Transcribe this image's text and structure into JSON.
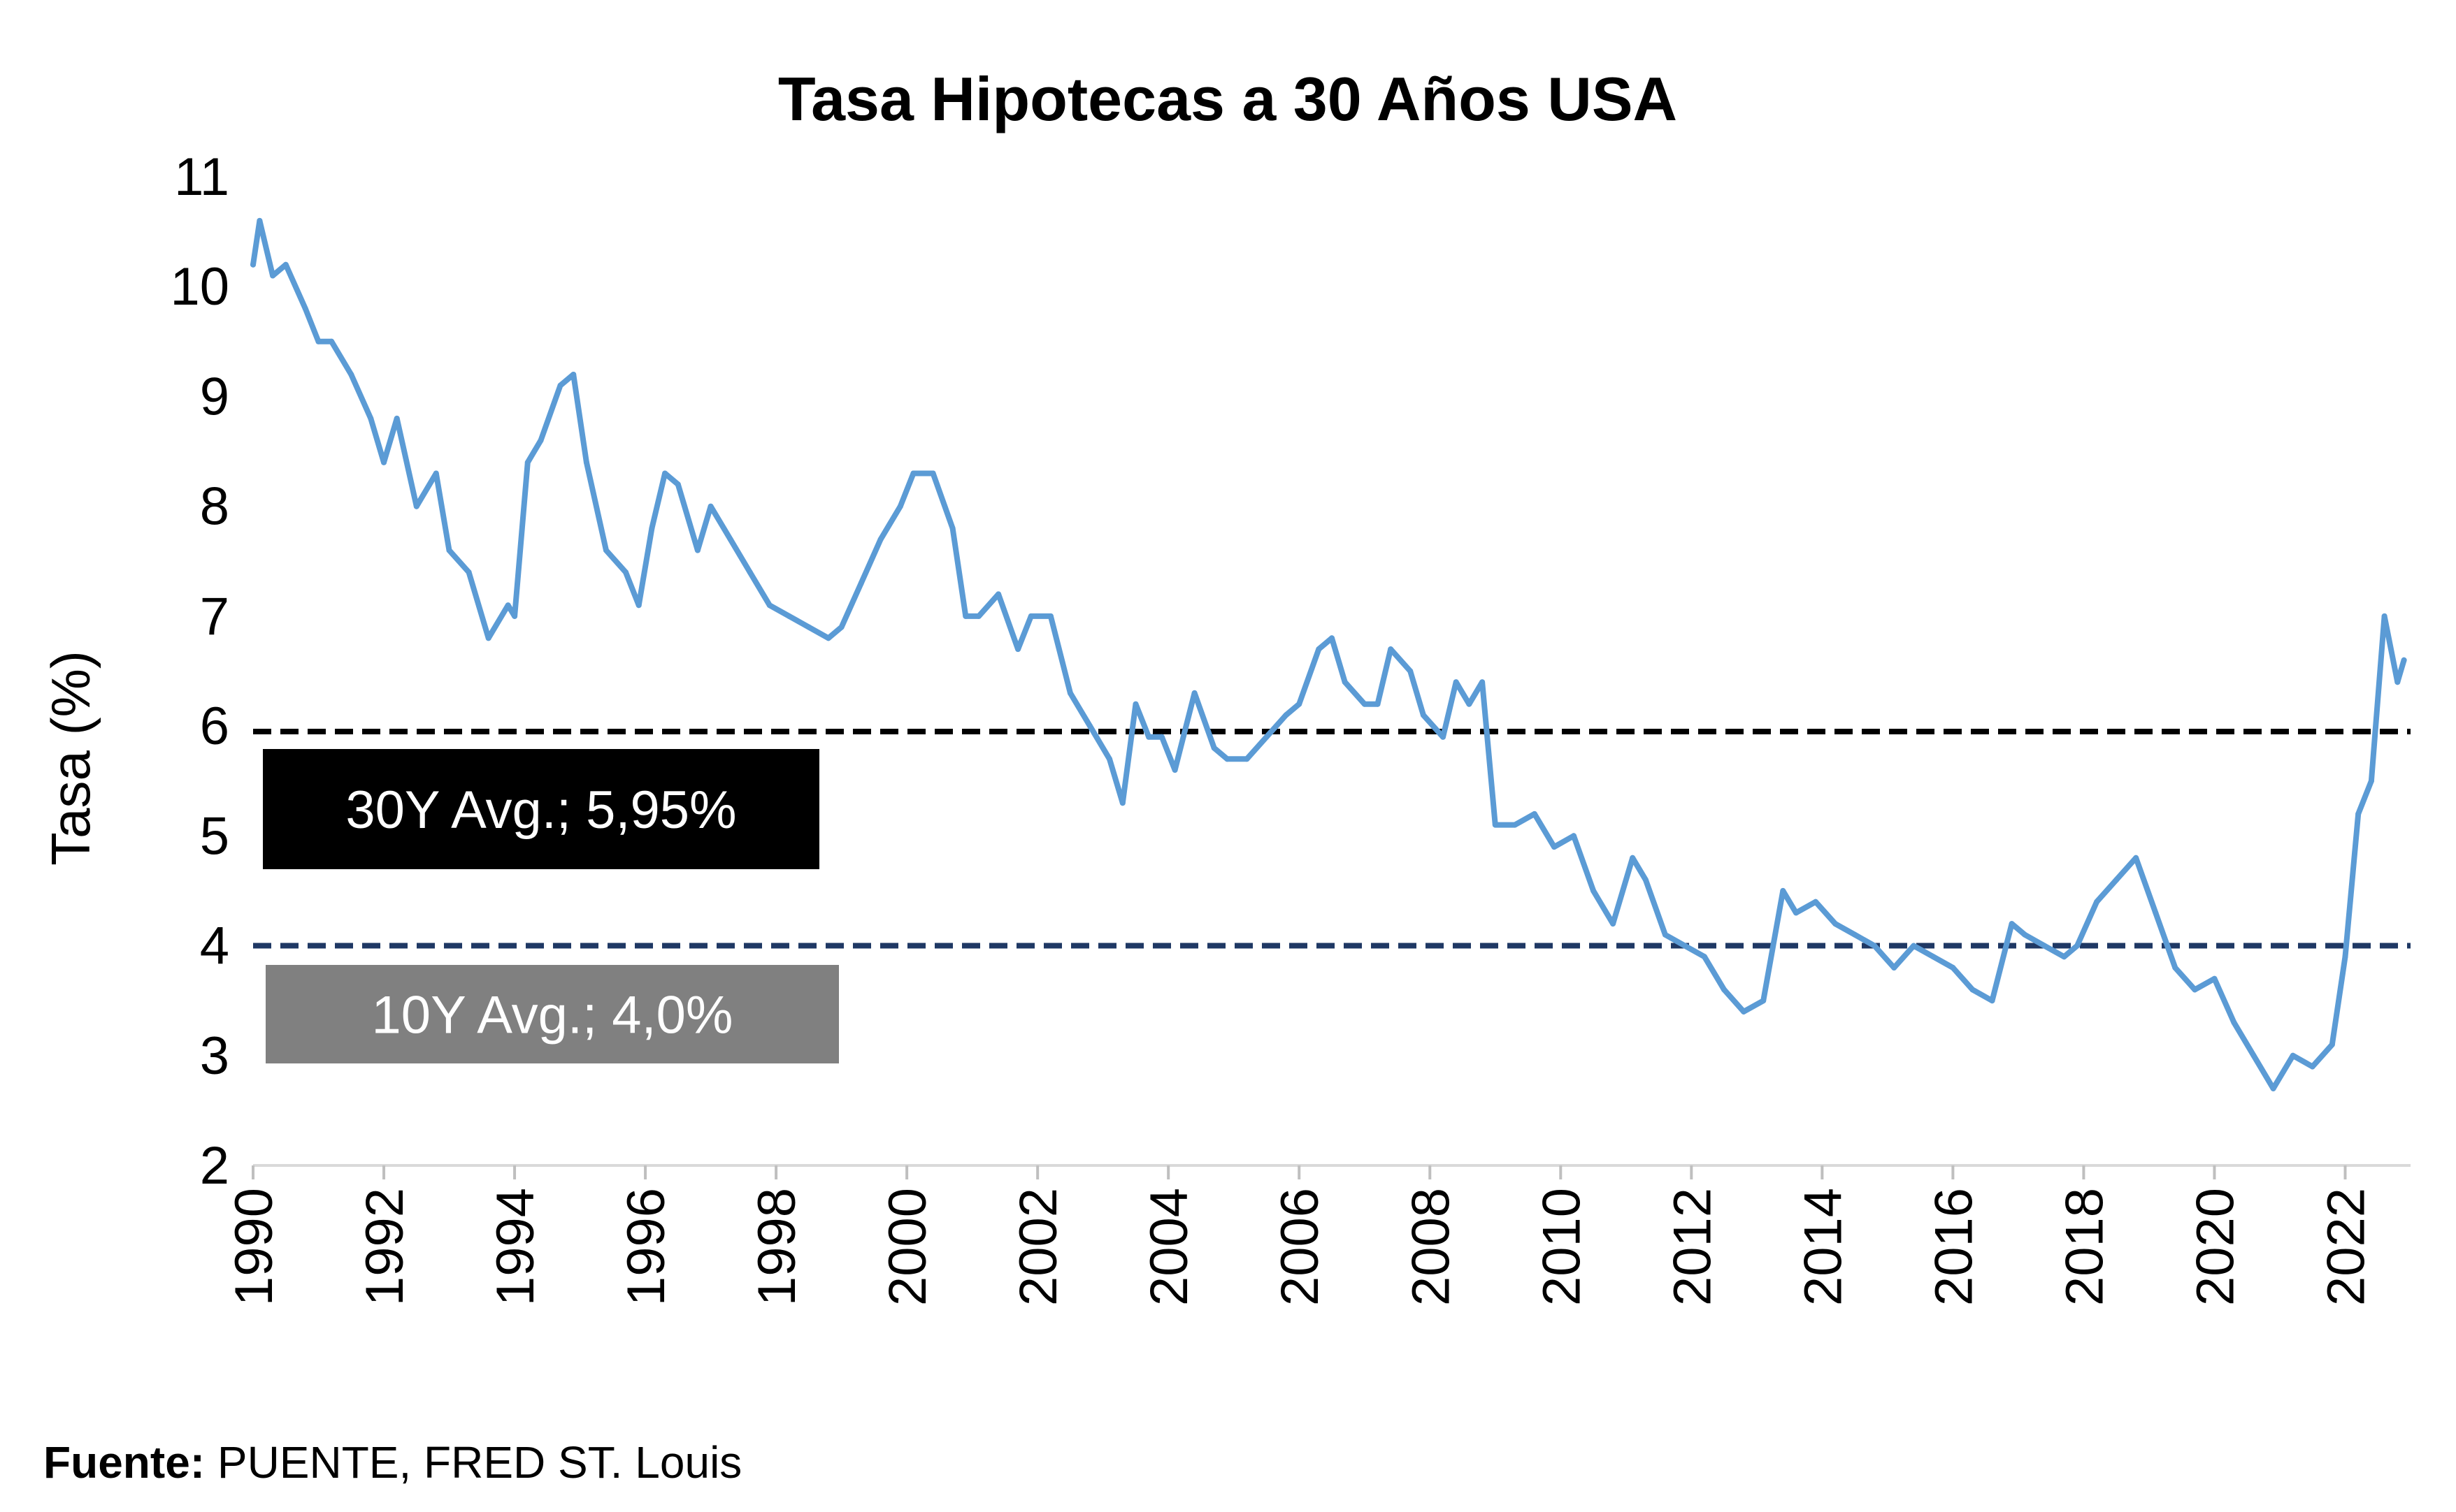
{
  "chart_data": {
    "type": "line",
    "title": "Tasa Hipotecas a 30 Años USA",
    "xlabel": "",
    "ylabel": "Tasa (%)",
    "ylim": [
      2,
      11
    ],
    "xlim": [
      1990,
      2023
    ],
    "yticks": [
      "2",
      "3",
      "4",
      "5",
      "6",
      "7",
      "8",
      "9",
      "10",
      "11"
    ],
    "xticks": [
      "1990",
      "1992",
      "1994",
      "1996",
      "1998",
      "2000",
      "2002",
      "2004",
      "2006",
      "2008",
      "2010",
      "2012",
      "2014",
      "2016",
      "2018",
      "2020",
      "2022"
    ],
    "series": [
      {
        "name": "",
        "color": "#5b9bd5",
        "x": [
          1990.0,
          1990.1,
          1990.3,
          1990.5,
          1990.8,
          1991.0,
          1991.2,
          1991.5,
          1991.8,
          1992.0,
          1992.2,
          1992.5,
          1992.8,
          1993.0,
          1993.3,
          1993.6,
          1993.9,
          1994.0,
          1994.2,
          1994.4,
          1994.7,
          1994.9,
          1995.1,
          1995.4,
          1995.7,
          1995.9,
          1996.1,
          1996.3,
          1996.5,
          1996.8,
          1997.0,
          1997.3,
          1997.6,
          1997.9,
          1998.2,
          1998.5,
          1998.8,
          1999.0,
          1999.3,
          1999.6,
          1999.9,
          2000.1,
          2000.4,
          2000.7,
          2000.9,
          2001.1,
          2001.4,
          2001.7,
          2001.9,
          2002.2,
          2002.5,
          2002.8,
          2003.1,
          2003.3,
          2003.5,
          2003.7,
          2003.9,
          2004.1,
          2004.4,
          2004.7,
          2004.9,
          2005.2,
          2005.5,
          2005.8,
          2006.0,
          2006.3,
          2006.5,
          2006.7,
          2007.0,
          2007.2,
          2007.4,
          2007.7,
          2007.9,
          2008.2,
          2008.4,
          2008.6,
          2008.8,
          2009.0,
          2009.3,
          2009.6,
          2009.9,
          2010.2,
          2010.5,
          2010.8,
          2011.1,
          2011.3,
          2011.6,
          2011.9,
          2012.2,
          2012.5,
          2012.8,
          2013.1,
          2013.4,
          2013.6,
          2013.9,
          2014.2,
          2014.5,
          2014.8,
          2015.1,
          2015.4,
          2015.7,
          2016.0,
          2016.3,
          2016.6,
          2016.9,
          2017.1,
          2017.4,
          2017.7,
          2017.9,
          2018.2,
          2018.5,
          2018.8,
          2019.1,
          2019.4,
          2019.7,
          2020.0,
          2020.3,
          2020.6,
          2020.9,
          2021.2,
          2021.5,
          2021.8,
          2022.0,
          2022.2,
          2022.4,
          2022.6,
          2022.8,
          2022.9
        ],
        "y": [
          10.2,
          10.6,
          10.1,
          10.2,
          9.8,
          9.5,
          9.5,
          9.2,
          8.8,
          8.4,
          8.8,
          8.0,
          8.3,
          7.6,
          7.4,
          6.8,
          7.1,
          7.0,
          8.4,
          8.6,
          9.1,
          9.2,
          8.4,
          7.6,
          7.4,
          7.1,
          7.8,
          8.3,
          8.2,
          7.6,
          8.0,
          7.7,
          7.4,
          7.1,
          7.0,
          6.9,
          6.8,
          6.9,
          7.3,
          7.7,
          8.0,
          8.3,
          8.3,
          7.8,
          7.0,
          7.0,
          7.2,
          6.7,
          7.0,
          7.0,
          6.3,
          6.0,
          5.7,
          5.3,
          6.2,
          5.9,
          5.9,
          5.6,
          6.3,
          5.8,
          5.7,
          5.7,
          5.9,
          6.1,
          6.2,
          6.7,
          6.8,
          6.4,
          6.2,
          6.2,
          6.7,
          6.5,
          6.1,
          5.9,
          6.4,
          6.2,
          6.4,
          5.1,
          5.1,
          5.2,
          4.9,
          5.0,
          4.5,
          4.2,
          4.8,
          4.6,
          4.1,
          4.0,
          3.9,
          3.6,
          3.4,
          3.5,
          4.5,
          4.3,
          4.4,
          4.2,
          4.1,
          4.0,
          3.8,
          4.0,
          3.9,
          3.8,
          3.6,
          3.5,
          4.2,
          4.1,
          4.0,
          3.9,
          4.0,
          4.4,
          4.6,
          4.8,
          4.3,
          3.8,
          3.6,
          3.7,
          3.3,
          3.0,
          2.7,
          3.0,
          2.9,
          3.1,
          3.9,
          5.2,
          5.5,
          7.0,
          6.4,
          6.6
        ]
      }
    ],
    "reference_lines": [
      {
        "label": "30Y Avg.; 5,95%",
        "value": 5.95,
        "color": "#000000",
        "box_color": "#000000"
      },
      {
        "label": "10Y Avg.; 4,0%",
        "value": 4.0,
        "color": "#1f3864",
        "box_color": "#808080"
      }
    ],
    "grid": false,
    "legend": "none"
  },
  "source": {
    "label": "Fuente:",
    "text": " PUENTE, FRED ST. Louis"
  }
}
